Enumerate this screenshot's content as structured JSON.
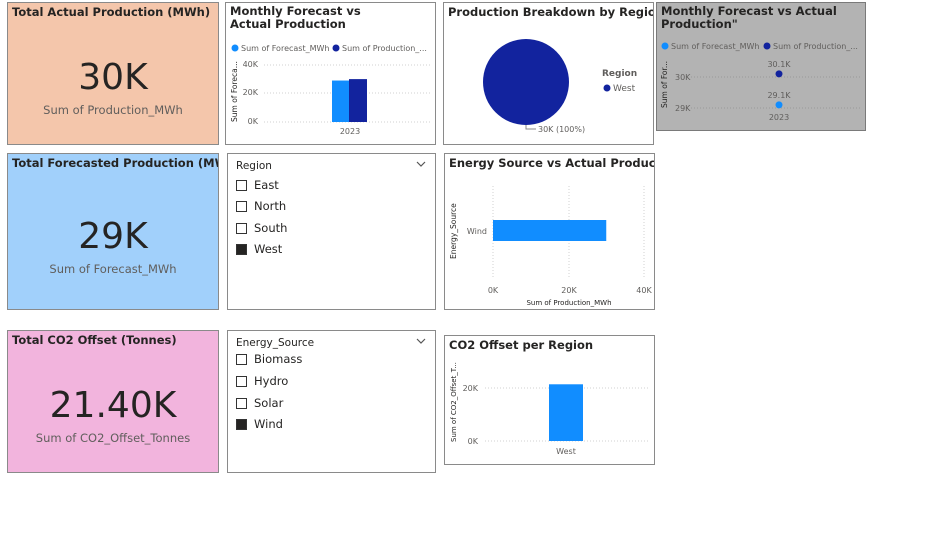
{
  "kpi_actual": {
    "title": "Total Actual Production (MWh)",
    "value": "30K",
    "label": "Sum of Production_MWh",
    "bg": "#f4c6ab"
  },
  "kpi_forecast": {
    "title": "Total Forecasted Production (MWh)",
    "value": "29K",
    "label": "Sum of Forecast_MWh",
    "bg": "#a1d0fb"
  },
  "kpi_co2": {
    "title": "Total CO2 Offset (Tonnes)",
    "value": "21.40K",
    "label": "Sum of CO2_Offset_Tonnes",
    "bg": "#f2b4dd"
  },
  "monthly_bar": {
    "title": "Monthly Forecast vs Actual Production",
    "legend": [
      "Sum of Forecast_MWh",
      "Sum of Production_..."
    ],
    "ylabel": "Sum of Foreca...",
    "yticks": [
      "40K",
      "20K",
      "0K"
    ],
    "xtick": "2023"
  },
  "pie": {
    "title": "Production Breakdown by Region",
    "legend_title": "Region",
    "legend_item": "West",
    "slice_label": "30K (100%)"
  },
  "monthly_line": {
    "title": "Monthly Forecast vs Actual Production\"",
    "legend": [
      "Sum of Forecast_MWh",
      "Sum of Production_..."
    ],
    "ylabel": "Sum of For...",
    "yticks": [
      "30K",
      "29K"
    ],
    "xtick": "2023",
    "label_actual": "30.1K",
    "label_forecast": "29.1K"
  },
  "region_slicer": {
    "header": "Region",
    "items": [
      {
        "label": "East",
        "checked": false
      },
      {
        "label": "North",
        "checked": false
      },
      {
        "label": "South",
        "checked": false
      },
      {
        "label": "West",
        "checked": true
      }
    ]
  },
  "energy_bar": {
    "title": "Energy Source vs Actual Production",
    "ylabel": "Energy_Source",
    "category": "Wind",
    "xticks": [
      "0K",
      "20K",
      "40K"
    ],
    "xlabel": "Sum of Production_MWh"
  },
  "energy_slicer": {
    "header": "Energy_Source",
    "items": [
      {
        "label": "Biomass",
        "checked": false
      },
      {
        "label": "Hydro",
        "checked": false
      },
      {
        "label": "Solar",
        "checked": false
      },
      {
        "label": "Wind",
        "checked": true
      }
    ]
  },
  "co2_bar": {
    "title": "CO2 Offset per Region",
    "ylabel": "Sum of CO2_Offset_T...",
    "yticks": [
      "20K",
      "0K"
    ],
    "category": "West"
  },
  "colors": {
    "forecast": "#118dff",
    "actual": "#12239e",
    "grid": "#d0d0d0",
    "gray_card": "#b3b3b3"
  },
  "chart_data": [
    {
      "type": "bar",
      "title": "Monthly Forecast vs Actual Production",
      "categories": [
        "2023"
      ],
      "series": [
        {
          "name": "Sum of Forecast_MWh",
          "values": [
            29100
          ]
        },
        {
          "name": "Sum of Production_...",
          "values": [
            30100
          ]
        }
      ],
      "ylabel": "Sum of Foreca...",
      "ylim": [
        0,
        40000
      ]
    },
    {
      "type": "pie",
      "title": "Production Breakdown by Region",
      "categories": [
        "West"
      ],
      "values": [
        30000
      ]
    },
    {
      "type": "scatter",
      "title": "Monthly Forecast vs Actual Production\"",
      "categories": [
        "2023"
      ],
      "series": [
        {
          "name": "Sum of Forecast_MWh",
          "values": [
            29100
          ]
        },
        {
          "name": "Sum of Production_...",
          "values": [
            30100
          ]
        }
      ],
      "ylim": [
        28600,
        30500
      ]
    },
    {
      "type": "bar",
      "title": "Energy Source vs Actual Production",
      "categories": [
        "Wind"
      ],
      "values": [
        30000
      ],
      "xlabel": "Sum of Production_MWh",
      "ylabel": "Energy_Source",
      "xlim": [
        0,
        40000
      ]
    },
    {
      "type": "bar",
      "title": "CO2 Offset per Region",
      "categories": [
        "West"
      ],
      "values": [
        21400
      ],
      "ylabel": "Sum of CO2_Offset_T...",
      "ylim": [
        0,
        25000
      ]
    }
  ]
}
